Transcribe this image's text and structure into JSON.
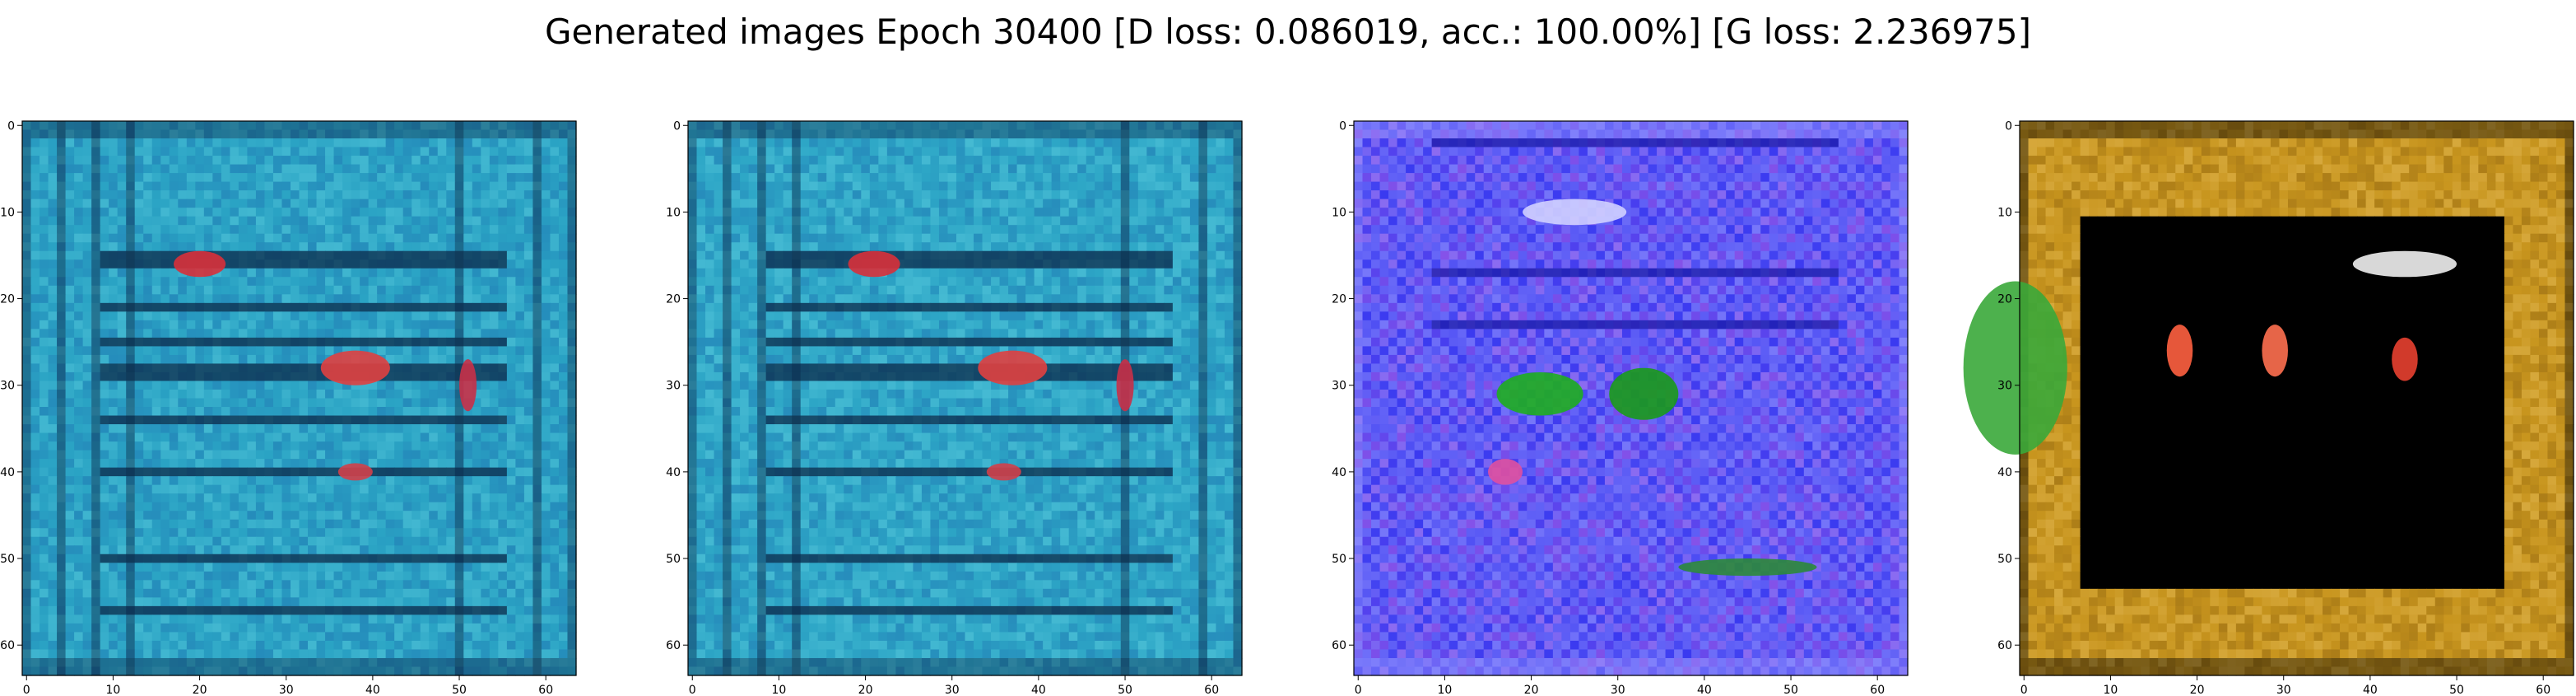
{
  "figure": {
    "title": "Generated images Epoch 30400 [D loss: 0.086019, acc.: 100.00%] [G loss: 2.236975]"
  },
  "chart_data": [
    {
      "type": "heatmap",
      "title": "",
      "image_size": 64,
      "xlim": [
        -0.5,
        63.5
      ],
      "ylim": [
        63.5,
        -0.5
      ],
      "xticks": [
        0,
        10,
        20,
        30,
        40,
        50,
        60
      ],
      "yticks": [
        0,
        10,
        20,
        30,
        40,
        50,
        60
      ],
      "palette": {
        "base": "#2aa3c4",
        "dark": "#0b2a4a",
        "light": "#5fd0e0",
        "accent": "#d8303a",
        "alt": "#1f6fb0"
      },
      "stripes": [
        [
          15,
          2
        ],
        [
          21,
          1
        ],
        [
          25,
          1
        ],
        [
          28,
          2
        ],
        [
          34,
          1
        ],
        [
          40,
          1
        ],
        [
          50,
          1
        ],
        [
          56,
          1
        ]
      ],
      "vstripes": [
        [
          4,
          1
        ],
        [
          8,
          1
        ],
        [
          12,
          1
        ],
        [
          50,
          1
        ],
        [
          59,
          1
        ]
      ],
      "blobs": [
        [
          20,
          16,
          3,
          1.5,
          "#d8303a"
        ],
        [
          38,
          28,
          4,
          2,
          "#e04040"
        ],
        [
          51,
          30,
          1,
          3,
          "#c83048"
        ],
        [
          38,
          40,
          2,
          1,
          "#d0404a"
        ]
      ]
    },
    {
      "type": "heatmap",
      "title": "",
      "image_size": 64,
      "xlim": [
        -0.5,
        63.5
      ],
      "ylim": [
        63.5,
        -0.5
      ],
      "xticks": [
        0,
        10,
        20,
        30,
        40,
        50,
        60
      ],
      "yticks": [
        0,
        10,
        20,
        30,
        40,
        50,
        60
      ],
      "palette": {
        "base": "#2da6c6",
        "dark": "#0b2a4a",
        "light": "#62d2e2",
        "accent": "#d8303a",
        "alt": "#1f6fb0"
      },
      "stripes": [
        [
          15,
          2
        ],
        [
          21,
          1
        ],
        [
          25,
          1
        ],
        [
          28,
          2
        ],
        [
          34,
          1
        ],
        [
          40,
          1
        ],
        [
          50,
          1
        ],
        [
          56,
          1
        ]
      ],
      "vstripes": [
        [
          4,
          1
        ],
        [
          8,
          1
        ],
        [
          12,
          1
        ],
        [
          50,
          1
        ],
        [
          59,
          1
        ]
      ],
      "blobs": [
        [
          21,
          16,
          3,
          1.5,
          "#d8303a"
        ],
        [
          37,
          28,
          4,
          2,
          "#e04040"
        ],
        [
          50,
          30,
          1,
          3,
          "#c83048"
        ],
        [
          36,
          40,
          2,
          1,
          "#d0404a"
        ]
      ]
    },
    {
      "type": "heatmap",
      "title": "",
      "image_size": 64,
      "xlim": [
        -0.5,
        63.5
      ],
      "ylim": [
        63.5,
        -0.5
      ],
      "xticks": [
        0,
        10,
        20,
        30,
        40,
        50,
        60
      ],
      "yticks": [
        0,
        10,
        20,
        30,
        40,
        50,
        60
      ],
      "palette": {
        "base": "#3a3af0",
        "dark": "#1a1aa8",
        "light": "#9a9aff",
        "accent": "#1fae1f",
        "alt": "#e070e0"
      },
      "stripes": [
        [
          2,
          1
        ],
        [
          17,
          1
        ],
        [
          23,
          1
        ]
      ],
      "vstripes": [],
      "blobs": [
        [
          21,
          31,
          5,
          2.5,
          "#1fae1f"
        ],
        [
          33,
          31,
          4,
          3,
          "#1a9a1a"
        ],
        [
          17,
          40,
          2,
          1.5,
          "#e050a0"
        ],
        [
          25,
          10,
          6,
          1.5,
          "#d0d0ff"
        ],
        [
          45,
          51,
          8,
          1,
          "#2c8a3a"
        ]
      ]
    },
    {
      "type": "heatmap",
      "title": "",
      "image_size": 64,
      "xlim": [
        -0.5,
        63.5
      ],
      "ylim": [
        63.5,
        -0.5
      ],
      "xticks": [
        0,
        10,
        20,
        30,
        40,
        50,
        60
      ],
      "yticks": [
        0,
        10,
        20,
        30,
        40,
        50,
        60
      ],
      "palette": {
        "base": "#c8951e",
        "dark": "#000000",
        "light": "#e8c060",
        "accent": "#ff6040",
        "alt": "#8a6010"
      },
      "inner_rect": [
        7,
        11,
        55,
        53
      ],
      "stripes": [
        [
          11,
          1
        ]
      ],
      "vstripes": [],
      "blobs": [
        [
          -1,
          28,
          6,
          10,
          "#3aa83a"
        ],
        [
          18,
          26,
          1.5,
          3,
          "#ff6040"
        ],
        [
          29,
          26,
          1.5,
          3,
          "#ff7050"
        ],
        [
          44,
          27,
          1.5,
          2.5,
          "#e84030"
        ],
        [
          44,
          16,
          6,
          1.5,
          "#f0f0f0"
        ]
      ]
    }
  ]
}
